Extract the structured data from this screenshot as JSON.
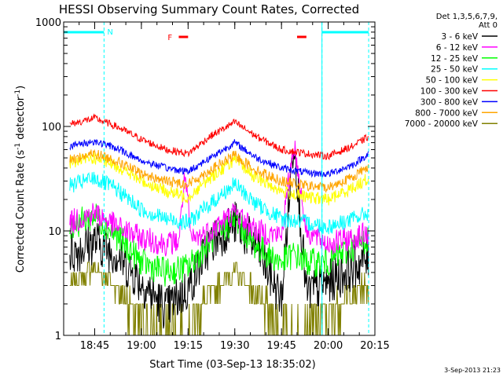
{
  "chart_data": {
    "type": "line",
    "title": "HESSI Observing Summary Count Rates, Corrected",
    "xlabel": "Start Time (03-Sep-13 18:35:02)",
    "ylabel": "Corrected Count Rate (s",
    "ylabel_sup1": "-1",
    "ylabel_mid": " detector",
    "ylabel_sup2": "-1",
    "ylabel_end": ")",
    "x_range": [
      "18:35:02",
      "20:15:00"
    ],
    "x_ticks": [
      "18:45",
      "19:00",
      "19:15",
      "19:30",
      "19:45",
      "20:00",
      "20:15"
    ],
    "y_scale": "log",
    "ylim": [
      1,
      1000
    ],
    "y_ticks": [
      "1",
      "10",
      "100",
      "1000"
    ],
    "grid": false,
    "legend_header": [
      "Det 1,3,5,6,7,9,",
      "Att 0"
    ],
    "legend_position": "right",
    "stamp": "3-Sep-2013 21:23",
    "series": [
      {
        "name": "3 - 6 keV",
        "color": "#000000",
        "t": [
          "18:37",
          "18:45",
          "18:52",
          "19:00",
          "19:08",
          "19:15",
          "19:22",
          "19:30",
          "19:37",
          "19:45",
          "19:49",
          "19:53",
          "20:00",
          "20:08",
          "20:13"
        ],
        "values": [
          6,
          8,
          6,
          3.2,
          1.8,
          2.8,
          7.5,
          12,
          7,
          2.2,
          80,
          2.5,
          3.2,
          4.5,
          5.5
        ]
      },
      {
        "name": "6 - 12 keV",
        "color": "#ff00ff",
        "t": [
          "18:37",
          "18:45",
          "18:52",
          "19:00",
          "19:08",
          "19:12",
          "19:14",
          "19:16",
          "19:22",
          "19:30",
          "19:37",
          "19:45",
          "19:49",
          "19:53",
          "20:00",
          "20:08",
          "20:13"
        ],
        "values": [
          12,
          15,
          11,
          8.5,
          7.5,
          8,
          35,
          8,
          10,
          15,
          10,
          9,
          70,
          10,
          7.5,
          8.5,
          9.5
        ]
      },
      {
        "name": "12 - 25 keV",
        "color": "#00ff00",
        "t": [
          "18:37",
          "18:45",
          "18:52",
          "19:00",
          "19:08",
          "19:15",
          "19:22",
          "19:30",
          "19:37",
          "19:45",
          "19:49",
          "19:53",
          "20:00",
          "20:08",
          "20:13"
        ],
        "values": [
          11,
          14,
          9,
          5,
          4,
          4.5,
          8,
          13,
          7,
          5,
          6,
          5,
          5,
          7,
          8.5
        ]
      },
      {
        "name": "25 - 50 keV",
        "color": "#00ffff",
        "t": [
          "18:37",
          "18:45",
          "18:52",
          "19:00",
          "19:08",
          "19:15",
          "19:22",
          "19:30",
          "19:37",
          "19:45",
          "19:53",
          "20:00",
          "20:08",
          "20:13"
        ],
        "values": [
          27,
          32,
          25,
          16,
          13,
          12,
          18,
          28,
          18,
          13,
          12,
          11,
          13,
          15
        ]
      },
      {
        "name": "50 - 100 keV",
        "color": "#ffff00",
        "t": [
          "18:37",
          "18:45",
          "18:52",
          "19:00",
          "19:08",
          "19:15",
          "19:22",
          "19:30",
          "19:37",
          "19:45",
          "19:53",
          "20:00",
          "20:08",
          "20:13"
        ],
        "values": [
          45,
          50,
          42,
          30,
          24,
          21,
          32,
          48,
          32,
          24,
          21,
          20,
          26,
          32
        ]
      },
      {
        "name": "100 - 300 keV",
        "color": "#ff0000",
        "t": [
          "18:37",
          "18:45",
          "18:52",
          "19:00",
          "19:08",
          "19:15",
          "19:22",
          "19:30",
          "19:37",
          "19:45",
          "19:53",
          "20:00",
          "20:08",
          "20:13"
        ],
        "values": [
          105,
          120,
          100,
          75,
          60,
          55,
          80,
          110,
          80,
          60,
          55,
          52,
          65,
          80
        ]
      },
      {
        "name": "300 - 800 keV",
        "color": "#0000ff",
        "t": [
          "18:37",
          "18:45",
          "18:52",
          "19:00",
          "19:08",
          "19:15",
          "19:22",
          "19:30",
          "19:37",
          "19:45",
          "19:53",
          "20:00",
          "20:08",
          "20:13"
        ],
        "values": [
          65,
          72,
          62,
          47,
          40,
          37,
          50,
          70,
          50,
          40,
          36,
          35,
          43,
          55
        ]
      },
      {
        "name": "800 - 7000 keV",
        "color": "#ffa500",
        "t": [
          "18:37",
          "18:45",
          "18:52",
          "19:00",
          "19:08",
          "19:15",
          "19:22",
          "19:30",
          "19:37",
          "19:45",
          "19:53",
          "20:00",
          "20:08",
          "20:13"
        ],
        "values": [
          48,
          55,
          47,
          35,
          30,
          28,
          38,
          53,
          38,
          30,
          27,
          26,
          33,
          42
        ]
      },
      {
        "name": "7000 - 20000 keV",
        "color": "#808000",
        "t": [
          "18:37",
          "18:45",
          "18:52",
          "19:00",
          "19:08",
          "19:15",
          "19:22",
          "19:30",
          "19:37",
          "19:45",
          "19:53",
          "20:00",
          "20:08",
          "20:13"
        ],
        "values": [
          3,
          4.5,
          3,
          1.3,
          1.05,
          1.2,
          2.5,
          4.2,
          2.5,
          1.2,
          1.05,
          1.7,
          2.5,
          3
        ]
      }
    ],
    "annotations": {
      "night_marker_label": "N",
      "flare_marker_label": "F",
      "night_intervals": [
        [
          "18:35",
          "18:48"
        ],
        [
          "19:58",
          "20:13"
        ]
      ],
      "flare_intervals": [
        [
          "19:12",
          "19:15"
        ],
        [
          "19:50",
          "19:53"
        ]
      ],
      "night_color": "#00ffff",
      "flare_color": "#ff0000"
    }
  }
}
